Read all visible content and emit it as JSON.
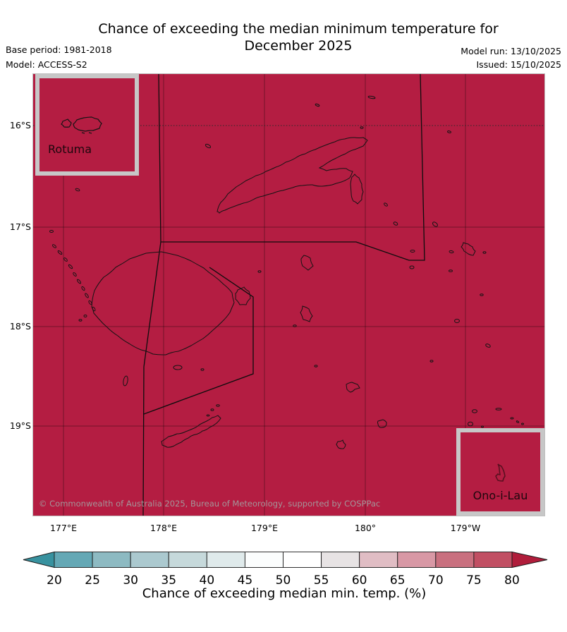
{
  "header": {
    "title_line1": "Chance of exceeding the median minimum temperature for",
    "title_line2": "December 2025",
    "base_period": "Base period: 1981-2018",
    "model": "Model: ACCESS-S2",
    "model_run": "Model run: 13/10/2025",
    "issued": "Issued: 15/10/2025"
  },
  "map": {
    "region_fill_color": "#b41d42",
    "gridline_color": "rgba(0,0,0,0.35)",
    "coastline_color": "#141414",
    "boundary_color": "#0d0d0d",
    "lat_labels": [
      "16°S",
      "17°S",
      "18°S",
      "19°S"
    ],
    "lon_labels": [
      "177°E",
      "178°E",
      "179°E",
      "180°",
      "179°W"
    ],
    "inset_rotuma_label": "Rotuma",
    "inset_ono_i_lau_label": "Ono-i-Lau",
    "copyright": "© Commonwealth of Australia 2025, Bureau of Meteorology, supported by COSPPac"
  },
  "colorbar": {
    "caption": "Chance of exceeding median min. temp. (%)",
    "tick_labels": [
      "20",
      "25",
      "30",
      "35",
      "40",
      "45",
      "50",
      "55",
      "60",
      "65",
      "70",
      "75",
      "80"
    ],
    "segment_colors": [
      "#64a8b5",
      "#8dbac2",
      "#abc9cf",
      "#c6d9db",
      "#dfeaeb",
      "#fbfdfd",
      "#ffffff",
      "#e7e3e4",
      "#e0bdc4",
      "#d898a5",
      "#c9707f",
      "#c14f63"
    ],
    "left_arrow_color": "#38929f",
    "right_arrow_color": "#b01d3b",
    "outline_color": "#1a1a1a"
  },
  "chart_data": {
    "type": "heatmap",
    "title": "Chance of exceeding the median minimum temperature for December 2025",
    "variable": "Chance of exceeding median min. temp. (%)",
    "model": "ACCESS-S2",
    "base_period": "1981-2018",
    "model_run": "13/10/2025",
    "issued": "15/10/2025",
    "region": "Fiji, with Rotuma and Ono-i-Lau insets",
    "lat_axis_ticks": [
      "16°S",
      "17°S",
      "18°S",
      "19°S"
    ],
    "lon_axis_ticks": [
      "177°E",
      "178°E",
      "179°E",
      "180°",
      "179°W"
    ],
    "colorbar_ticks": [
      20,
      25,
      30,
      35,
      40,
      45,
      50,
      55,
      60,
      65,
      70,
      75,
      80
    ],
    "colorbar_unit": "%",
    "colorbar_orientation": "horizontal",
    "value_field": "chance_of_exceeding_median_min_temp_percent",
    "region_value_percent": ">80",
    "data_summary": "The entire mapped Fiji domain, including the Rotuma and Ono-i-Lau insets, is shaded in the greater-than-80% class"
  }
}
